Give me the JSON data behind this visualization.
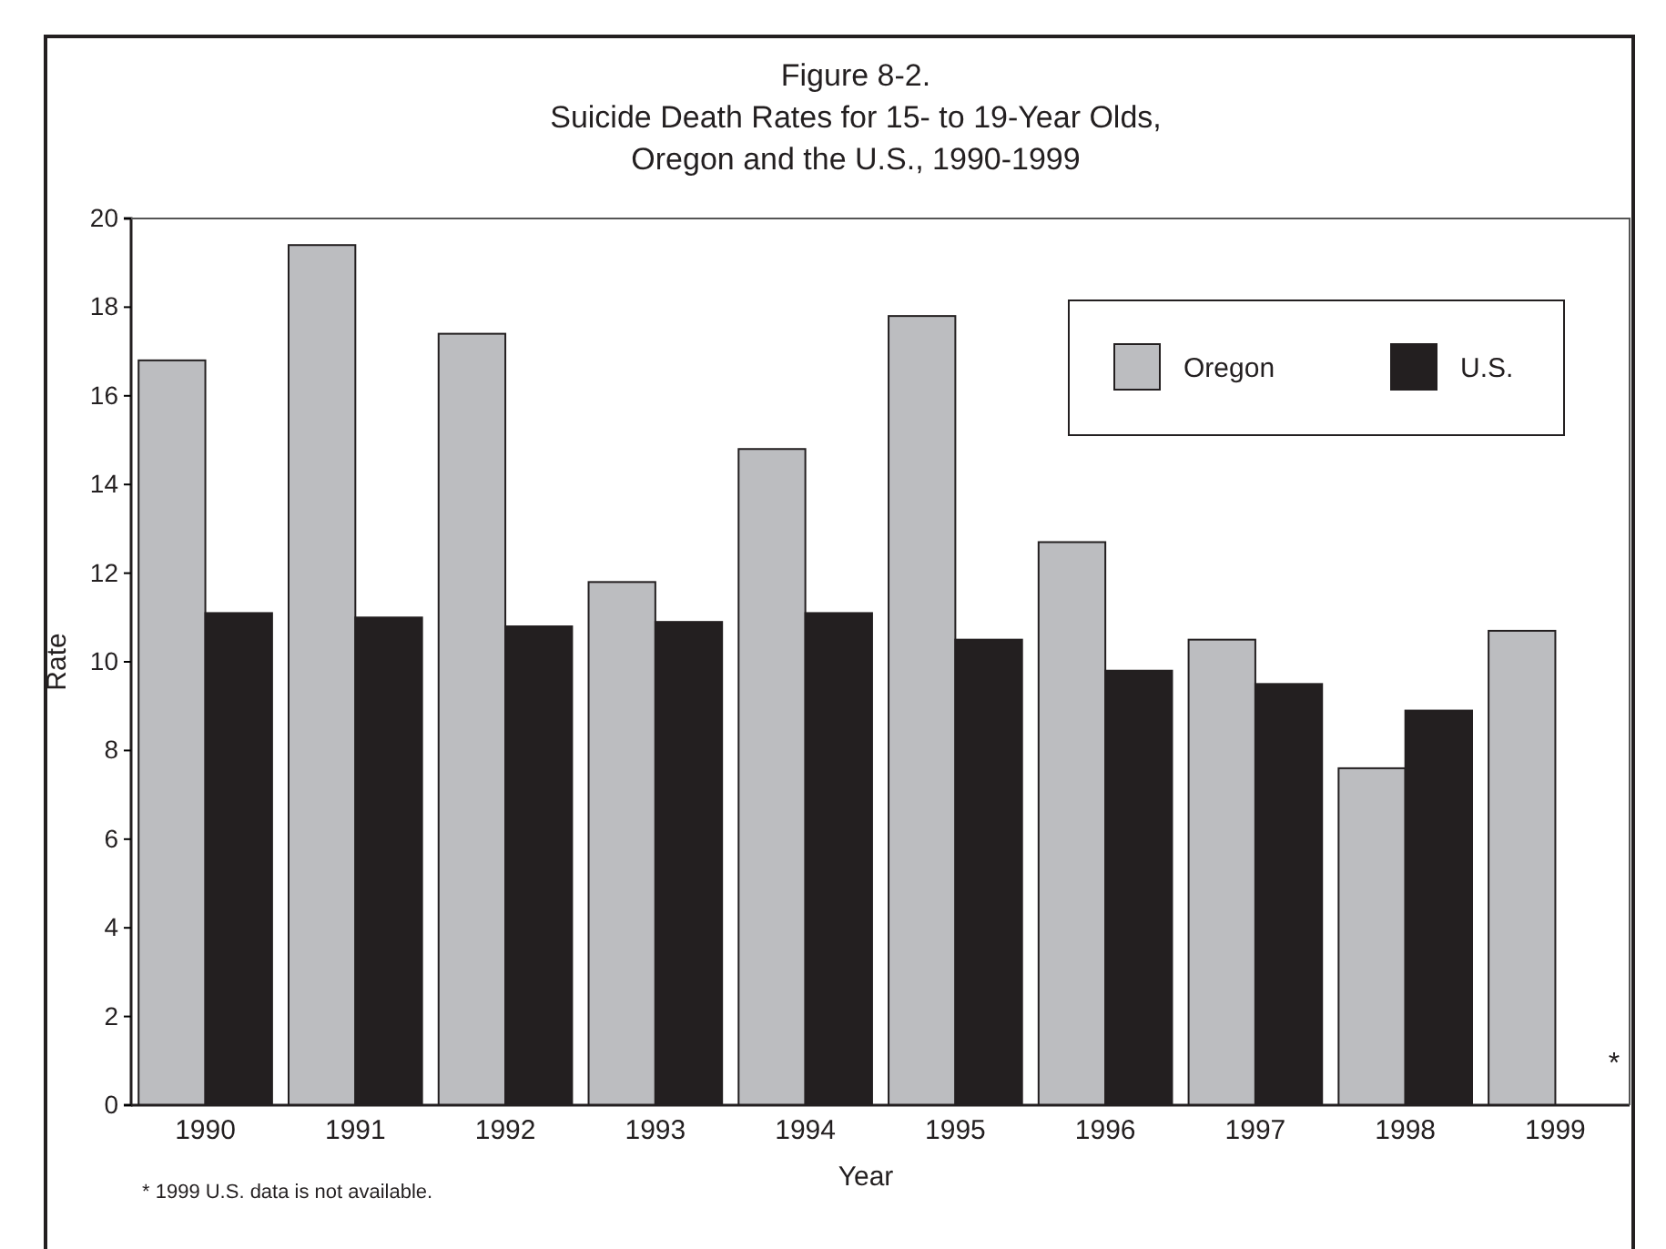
{
  "chart_data": {
    "type": "bar",
    "title": "Figure 8-2.\nSuicide Death Rates for 15- to 19-Year Olds,\nOregon and the U.S., 1990-1999",
    "xlabel": "Year",
    "ylabel": "Rate",
    "categories": [
      "1990",
      "1991",
      "1992",
      "1993",
      "1994",
      "1995",
      "1996",
      "1997",
      "1998",
      "1999"
    ],
    "series": [
      {
        "name": "Oregon",
        "color": "#bcbdc0",
        "values": [
          16.8,
          19.4,
          17.4,
          11.8,
          14.8,
          17.8,
          12.7,
          10.5,
          7.6,
          10.7
        ]
      },
      {
        "name": "U.S.",
        "color": "#231f20",
        "values": [
          11.1,
          11.0,
          10.8,
          10.9,
          11.1,
          10.5,
          9.8,
          9.5,
          8.9,
          null
        ]
      }
    ],
    "ylim": [
      0,
      20
    ],
    "yticks": [
      0,
      2,
      4,
      6,
      8,
      10,
      12,
      14,
      16,
      18,
      20
    ],
    "legend": "top right",
    "annotations": [
      {
        "text": "*",
        "x": "1999"
      },
      "* 1999 U.S. data is not available."
    ]
  }
}
